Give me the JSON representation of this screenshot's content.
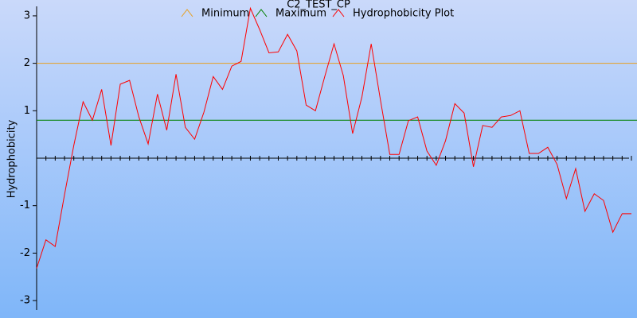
{
  "chart_data": {
    "type": "line",
    "title": "C2_TEST_CP",
    "y_label": "Hydrophobicity",
    "ylim": [
      -3.2,
      3.2
    ],
    "yticks": [
      -3,
      -2,
      -1,
      1,
      2,
      3
    ],
    "series": [
      {
        "name": "Minimum",
        "color": "#e8a020",
        "value": 2
      },
      {
        "name": "Maximum",
        "color": "#008000",
        "value": 0.8
      },
      {
        "name": "Hydrophobicity Plot",
        "color": "#ff0000",
        "values": [
          -2.32,
          -1.72,
          -1.86,
          -0.77,
          0.27,
          1.19,
          0.8,
          1.45,
          0.27,
          1.56,
          1.64,
          0.87,
          0.3,
          1.35,
          0.59,
          1.77,
          0.65,
          0.4,
          0.97,
          1.72,
          1.45,
          1.94,
          2.04,
          3.16,
          2.71,
          2.22,
          2.24,
          2.61,
          2.26,
          1.12,
          1.0,
          1.72,
          2.41,
          1.74,
          0.52,
          1.29,
          2.41,
          1.22,
          0.08,
          0.08,
          0.79,
          0.87,
          0.15,
          -0.15,
          0.37,
          1.15,
          0.95,
          -0.18,
          0.69,
          0.65,
          0.87,
          0.9,
          1.0,
          0.1,
          0.1,
          0.23,
          -0.13,
          -0.85,
          -0.22,
          -1.12,
          -0.75,
          -0.89,
          -1.56,
          -1.17,
          -1.17
        ]
      }
    ]
  }
}
